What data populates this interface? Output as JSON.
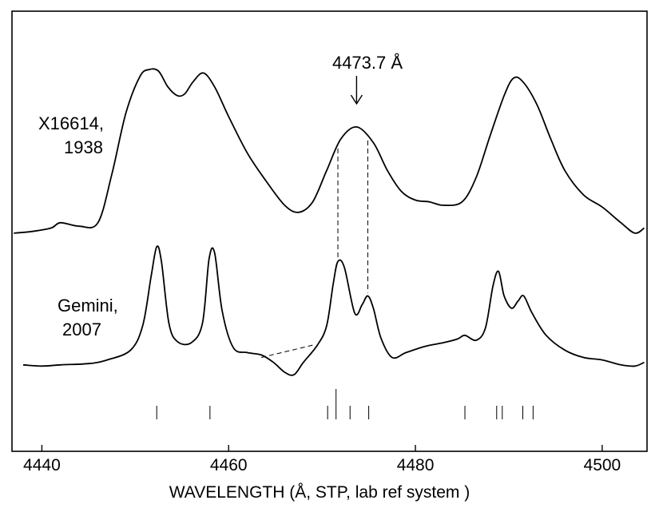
{
  "chart_data": {
    "type": "line",
    "title": "",
    "xlabel": "WAVELENGTH  (Å,  STP, lab ref system )",
    "ylabel": "",
    "xlim": [
      4436.8,
      4504.8
    ],
    "xticks": [
      4440,
      4460,
      4480,
      4500
    ],
    "xtick_labels": [
      "4440",
      "4460",
      "4480",
      "4500"
    ],
    "yaxis_shown": false,
    "series": [
      {
        "name": "X16614, 1938",
        "label_lines": [
          "X16614,",
          "1938"
        ],
        "x": [
          4437.0,
          4439.0,
          4441.0,
          4442.0,
          4444.0,
          4446.0,
          4447.5,
          4449.0,
          4450.5,
          4451.5,
          4452.5,
          4453.5,
          4454.5,
          4455.3,
          4456.2,
          4457.3,
          4458.5,
          4460.0,
          4462.0,
          4464.0,
          4466.0,
          4467.5,
          4469.0,
          4470.5,
          4472.0,
          4473.7,
          4475.5,
          4477.0,
          4478.5,
          4480.0,
          4481.5,
          4483.0,
          4485.0,
          4486.5,
          4488.0,
          4489.5,
          4490.5,
          4491.5,
          4493.0,
          4494.5,
          4496.0,
          4498.0,
          4500.0,
          4502.0,
          4503.5,
          4504.5
        ],
        "y": [
          0.06,
          0.07,
          0.09,
          0.12,
          0.1,
          0.12,
          0.4,
          0.75,
          0.96,
          1.0,
          0.99,
          0.9,
          0.85,
          0.86,
          0.93,
          0.98,
          0.9,
          0.73,
          0.52,
          0.36,
          0.22,
          0.18,
          0.24,
          0.42,
          0.6,
          0.67,
          0.58,
          0.42,
          0.3,
          0.25,
          0.24,
          0.22,
          0.24,
          0.38,
          0.62,
          0.85,
          0.95,
          0.93,
          0.8,
          0.6,
          0.42,
          0.28,
          0.21,
          0.12,
          0.06,
          0.09
        ]
      },
      {
        "name": "Gemini, 2007",
        "label_lines": [
          "Gemini,",
          "2007"
        ],
        "x": [
          4438.0,
          4440.0,
          4442.0,
          4445.0,
          4447.0,
          4449.5,
          4450.8,
          4451.7,
          4452.3,
          4452.8,
          4453.6,
          4454.5,
          4456.0,
          4457.2,
          4457.9,
          4458.5,
          4459.3,
          4460.5,
          4462.0,
          4463.5,
          4464.8,
          4466.0,
          4467.0,
          4468.0,
          4469.5,
          4470.5,
          4471.2,
          4471.7,
          4472.4,
          4473.5,
          4474.3,
          4474.9,
          4475.5,
          4476.3,
          4477.5,
          4479.0,
          4481.0,
          4483.0,
          4484.5,
          4485.3,
          4486.5,
          4487.5,
          4488.3,
          4488.9,
          4489.5,
          4490.3,
          4491.0,
          4491.6,
          4492.5,
          4494.0,
          4496.0,
          4498.0,
          4500.0,
          4502.0,
          4503.5,
          4504.5
        ],
        "y": [
          0.06,
          0.05,
          0.06,
          0.07,
          0.1,
          0.18,
          0.38,
          0.78,
          1.02,
          0.9,
          0.4,
          0.25,
          0.24,
          0.4,
          0.92,
          0.97,
          0.5,
          0.2,
          0.16,
          0.14,
          0.08,
          0.0,
          -0.02,
          0.08,
          0.22,
          0.38,
          0.72,
          0.9,
          0.85,
          0.48,
          0.55,
          0.62,
          0.52,
          0.28,
          0.12,
          0.16,
          0.21,
          0.24,
          0.27,
          0.3,
          0.26,
          0.36,
          0.7,
          0.82,
          0.62,
          0.52,
          0.58,
          0.62,
          0.48,
          0.3,
          0.18,
          0.12,
          0.1,
          0.06,
          0.05,
          0.08
        ]
      }
    ],
    "dashed_links": [
      4471.7,
      4474.9
    ],
    "continuum_dashed": {
      "x": [
        4463.5,
        4469.0
      ],
      "y": [
        0.12,
        0.22
      ]
    },
    "marker_lines": [
      {
        "x": 4452.3,
        "long": false
      },
      {
        "x": 4458.0,
        "long": false
      },
      {
        "x": 4470.6,
        "long": false
      },
      {
        "x": 4471.5,
        "long": true
      },
      {
        "x": 4473.0,
        "long": false
      },
      {
        "x": 4475.0,
        "long": false
      },
      {
        "x": 4485.3,
        "long": false
      },
      {
        "x": 4488.7,
        "long": false
      },
      {
        "x": 4489.3,
        "long": false
      },
      {
        "x": 4491.5,
        "long": false
      },
      {
        "x": 4492.6,
        "long": false
      }
    ],
    "annotation": {
      "text": "4473.7 Å",
      "x": 4473.7
    }
  }
}
